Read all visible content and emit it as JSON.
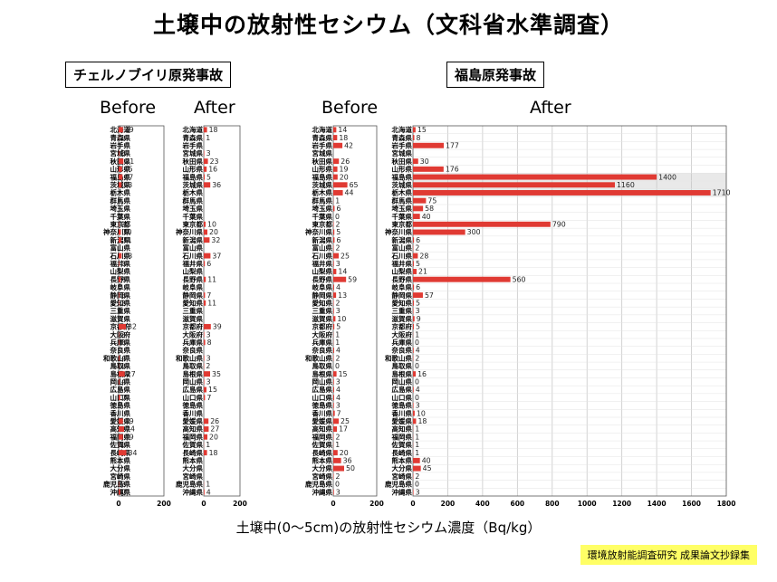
{
  "page": {
    "title": "土壌中の放射性セシウム（文科省水準調査）",
    "box_chernobyl": "チェルノブイリ原発事故",
    "box_fukushima": "福島原発事故",
    "axis_title": "土壌中(0～5cm)の放射性セシウム濃度（Bq/kg）",
    "footer": "環境放射能調査研究 成果論文抄録集"
  },
  "colors": {
    "bar": "#e03a33",
    "highlight": "#e9e9e9",
    "grid": "#c8c8c8",
    "frame": "#555555"
  },
  "chart_data": [
    {
      "type": "bar",
      "title": "Before",
      "orientation": "horizontal",
      "xlim": [
        0,
        200
      ],
      "xticks": [
        0,
        200
      ],
      "categories": [
        "北海道",
        "青森県",
        "岩手県",
        "宮城県",
        "秋田県",
        "山形県",
        "福島県",
        "茨城県",
        "栃木県",
        "群馬県",
        "埼玉県",
        "千葉県",
        "東京都",
        "神奈川県",
        "新潟県",
        "富山県",
        "石川県",
        "福井県",
        "山梨県",
        "長野県",
        "岐阜県",
        "静岡県",
        "愛知県",
        "三重県",
        "滋賀県",
        "京都府",
        "大阪府",
        "兵庫県",
        "奈良県",
        "和歌山県",
        "鳥取県",
        "島根県",
        "岡山県",
        "広島県",
        "山口県",
        "徳島県",
        "香川県",
        "愛媛県",
        "高知県",
        "福岡県",
        "佐賀県",
        "長崎県",
        "熊本県",
        "大分県",
        "宮崎県",
        "鹿児島県",
        "沖縄県"
      ],
      "values": [
        19,
        1,
        null,
        3,
        21,
        15,
        17,
        13,
        null,
        null,
        null,
        null,
        2,
        10,
        11,
        null,
        13,
        3,
        null,
        9,
        null,
        3,
        2,
        null,
        null,
        32,
        2,
        3,
        null,
        4,
        1,
        27,
        4,
        null,
        7,
        null,
        null,
        19,
        24,
        19,
        1,
        34,
        null,
        null,
        null,
        2,
        7
      ],
      "labels": [
        "19",
        "1",
        "",
        "3",
        "21",
        "15",
        "17",
        "13",
        "",
        "",
        "",
        "",
        "2",
        "10",
        "11",
        "",
        "13",
        "3",
        "",
        "9",
        "",
        "3",
        "2",
        "",
        "",
        "32",
        "2",
        "3",
        "",
        "4",
        "1",
        "27",
        "4",
        "",
        "7",
        "",
        "",
        "19",
        "24",
        "19",
        "1",
        "34",
        "",
        "",
        "",
        "2",
        "7"
      ]
    },
    {
      "type": "bar",
      "title": "After",
      "orientation": "horizontal",
      "xlim": [
        0,
        200
      ],
      "xticks": [
        0,
        200
      ],
      "categories": [
        "北海道",
        "青森県",
        "岩手県",
        "宮城県",
        "秋田県",
        "山形県",
        "福島県",
        "茨城県",
        "栃木県",
        "群馬県",
        "埼玉県",
        "千葉県",
        "東京都",
        "神奈川県",
        "新潟県",
        "富山県",
        "石川県",
        "福井県",
        "山梨県",
        "長野県",
        "岐阜県",
        "静岡県",
        "愛知県",
        "三重県",
        "滋賀県",
        "京都府",
        "大阪府",
        "兵庫県",
        "奈良県",
        "和歌山県",
        "鳥取県",
        "島根県",
        "岡山県",
        "広島県",
        "山口県",
        "徳島県",
        "香川県",
        "愛媛県",
        "高知県",
        "福岡県",
        "佐賀県",
        "長崎県",
        "熊本県",
        "大分県",
        "宮崎県",
        "鹿児島県",
        "沖縄県"
      ],
      "values": [
        18,
        1,
        null,
        3,
        23,
        16,
        5,
        36,
        null,
        null,
        null,
        null,
        10,
        20,
        32,
        null,
        37,
        6,
        null,
        11,
        null,
        7,
        11,
        null,
        null,
        39,
        3,
        8,
        null,
        3,
        2,
        35,
        3,
        15,
        7,
        null,
        null,
        26,
        27,
        20,
        1,
        18,
        null,
        null,
        null,
        1,
        4
      ],
      "labels": [
        "18",
        "1",
        "",
        "3",
        "23",
        "16",
        "5",
        "36",
        "",
        "",
        "",
        "",
        "10",
        "20",
        "32",
        "",
        "37",
        "6",
        "",
        "11",
        "",
        "7",
        "11",
        "",
        "",
        "39",
        "3",
        "8",
        "",
        "3",
        "2",
        "35",
        "3",
        "15",
        "7",
        "",
        "",
        "26",
        "27",
        "20",
        "1",
        "18",
        "",
        "",
        "",
        "1",
        "4"
      ]
    },
    {
      "type": "bar",
      "title": "Before",
      "orientation": "horizontal",
      "xlim": [
        0,
        200
      ],
      "xticks": [
        0,
        200
      ],
      "categories": [
        "北海道",
        "青森県",
        "岩手県",
        "宮城県",
        "秋田県",
        "山形県",
        "福島県",
        "茨城県",
        "栃木県",
        "群馬県",
        "埼玉県",
        "千葉県",
        "東京都",
        "神奈川県",
        "新潟県",
        "富山県",
        "石川県",
        "福井県",
        "山梨県",
        "長野県",
        "岐阜県",
        "静岡県",
        "愛知県",
        "三重県",
        "滋賀県",
        "京都府",
        "大阪府",
        "兵庫県",
        "奈良県",
        "和歌山県",
        "鳥取県",
        "島根県",
        "岡山県",
        "広島県",
        "山口県",
        "徳島県",
        "香川県",
        "愛媛県",
        "高知県",
        "福岡県",
        "佐賀県",
        "長崎県",
        "熊本県",
        "大分県",
        "宮崎県",
        "鹿児島県",
        "沖縄県"
      ],
      "values": [
        14,
        18,
        42,
        null,
        26,
        19,
        20,
        65,
        44,
        1,
        6,
        0,
        2,
        5,
        6,
        2,
        25,
        3,
        14,
        59,
        4,
        13,
        2,
        3,
        10,
        5,
        1,
        1,
        4,
        2,
        0,
        15,
        3,
        4,
        4,
        3,
        7,
        25,
        17,
        2,
        1,
        20,
        36,
        50,
        2,
        0,
        3
      ],
      "labels": [
        "14",
        "18",
        "42",
        "",
        "26",
        "19",
        "20",
        "65",
        "44",
        "1",
        "6",
        "0",
        "2",
        "5",
        "6",
        "2",
        "25",
        "3",
        "14",
        "59",
        "4",
        "13",
        "2",
        "3",
        "10",
        "5",
        "1",
        "1",
        "4",
        "2",
        "0",
        "15",
        "3",
        "4",
        "4",
        "3",
        "7",
        "25",
        "17",
        "2",
        "1",
        "20",
        "36",
        "50",
        "2",
        "0",
        "3"
      ]
    },
    {
      "type": "bar",
      "title": "After",
      "orientation": "horizontal",
      "xlim": [
        0,
        1800
      ],
      "xticks": [
        0,
        200,
        400,
        600,
        800,
        1000,
        1200,
        1400,
        1600,
        1800
      ],
      "grid": true,
      "categories": [
        "北海道",
        "青森県",
        "岩手県",
        "宮城県",
        "秋田県",
        "山形県",
        "福島県",
        "茨城県",
        "栃木県",
        "群馬県",
        "埼玉県",
        "千葉県",
        "東京都",
        "神奈川県",
        "新潟県",
        "富山県",
        "石川県",
        "福井県",
        "山梨県",
        "長野県",
        "岐阜県",
        "静岡県",
        "愛知県",
        "三重県",
        "滋賀県",
        "京都府",
        "大阪府",
        "兵庫県",
        "奈良県",
        "和歌山県",
        "鳥取県",
        "島根県",
        "岡山県",
        "広島県",
        "山口県",
        "徳島県",
        "香川県",
        "愛媛県",
        "高知県",
        "福岡県",
        "佐賀県",
        "長崎県",
        "熊本県",
        "大分県",
        "宮崎県",
        "鹿児島県",
        "沖縄県"
      ],
      "values": [
        15,
        8,
        177,
        null,
        30,
        176,
        1400,
        1160,
        1710,
        75,
        58,
        40,
        790,
        300,
        6,
        2,
        28,
        5,
        21,
        560,
        6,
        57,
        5,
        3,
        9,
        5,
        1,
        0,
        4,
        2,
        0,
        16,
        0,
        4,
        0,
        3,
        10,
        18,
        1,
        1,
        1,
        1,
        40,
        45,
        2,
        0,
        3
      ],
      "labels": [
        "15",
        "8",
        "177",
        "",
        "30",
        "176",
        "1400",
        "1160",
        "1710",
        "75",
        "58",
        "40",
        "790",
        "300",
        "6",
        "2",
        "28",
        "5",
        "21",
        "560",
        "6",
        "57",
        "5",
        "3",
        "9",
        "5",
        "1",
        "0",
        "4",
        "2",
        "0",
        "16",
        "0",
        "4",
        "0",
        "3",
        "10",
        "18",
        "1",
        "1",
        "1",
        "1",
        "40",
        "45",
        "2",
        "0",
        "3"
      ]
    }
  ]
}
